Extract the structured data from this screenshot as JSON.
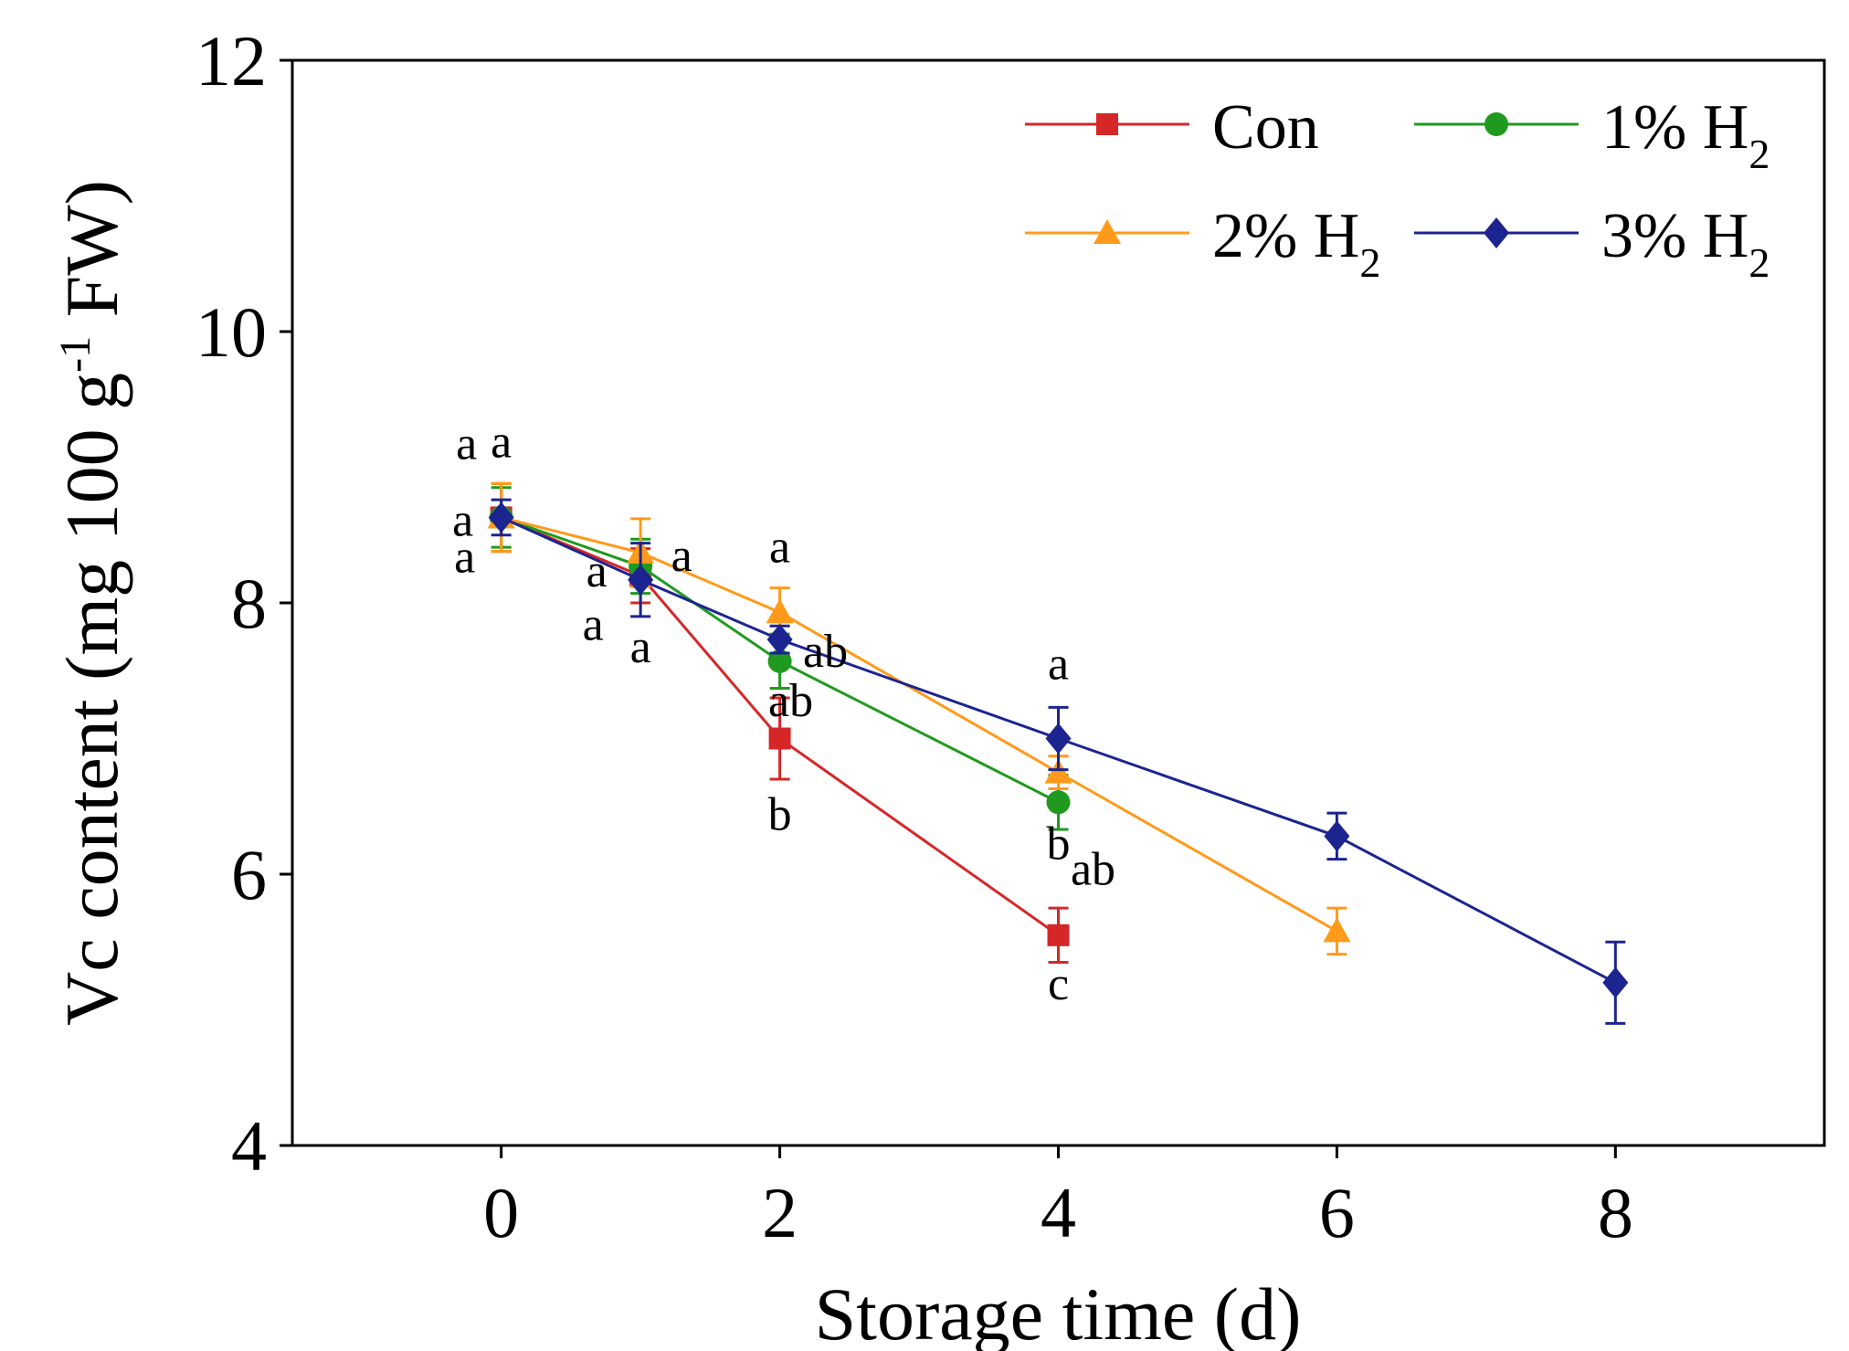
{
  "chart_data": {
    "type": "line",
    "xlabel": "Storage time (d)",
    "ylabel": {
      "prefix": "Vc content (mg 100 g",
      "sup": "-1",
      "suffix": " FW)"
    },
    "xlim": [
      -1.5,
      9.5
    ],
    "ylim": [
      4,
      12
    ],
    "xticks": [
      0,
      2,
      4,
      6,
      8
    ],
    "yticks": [
      4,
      6,
      8,
      10,
      12
    ],
    "grid": false,
    "legend_position": "top-right",
    "series": [
      {
        "name": "Con",
        "label_main": "Con",
        "label_sub": "",
        "color": "#d62728",
        "marker": "square",
        "x": [
          0,
          1,
          2,
          4
        ],
        "y": [
          8.63,
          8.2,
          7.0,
          5.55
        ],
        "err": [
          0.25,
          0.2,
          0.3,
          0.2
        ],
        "letters": [
          "a",
          "a",
          "b",
          "c"
        ]
      },
      {
        "name": "1% H2",
        "label_main": "1% H",
        "label_sub": "2",
        "color": "#1f9a1f",
        "marker": "circle",
        "x": [
          0,
          1,
          2,
          4
        ],
        "y": [
          8.63,
          8.27,
          7.57,
          6.53
        ],
        "err": [
          0.22,
          0.2,
          0.2,
          0.2
        ],
        "letters": [
          "a",
          "a",
          "ab",
          "ab"
        ]
      },
      {
        "name": "2% H2",
        "label_main": "2% H",
        "label_sub": "2",
        "color": "#ff9a1a",
        "marker": "triangle",
        "x": [
          0,
          1,
          2,
          4,
          6
        ],
        "y": [
          8.63,
          8.37,
          7.93,
          6.75,
          5.58
        ],
        "err": [
          0.25,
          0.25,
          0.18,
          0.12,
          0.17
        ],
        "letters": [
          "a",
          "a",
          "a",
          "b",
          ""
        ]
      },
      {
        "name": "3% H2",
        "label_main": "3% H",
        "label_sub": "2",
        "color": "#1c2490",
        "marker": "diamond",
        "x": [
          0,
          1,
          2,
          4,
          6,
          8
        ],
        "y": [
          8.63,
          8.17,
          7.73,
          7.0,
          6.28,
          5.2
        ],
        "err": [
          0.13,
          0.27,
          0.1,
          0.23,
          0.17,
          0.3
        ],
        "letters": [
          "a",
          "a",
          "ab",
          "a",
          "",
          ""
        ]
      }
    ]
  }
}
